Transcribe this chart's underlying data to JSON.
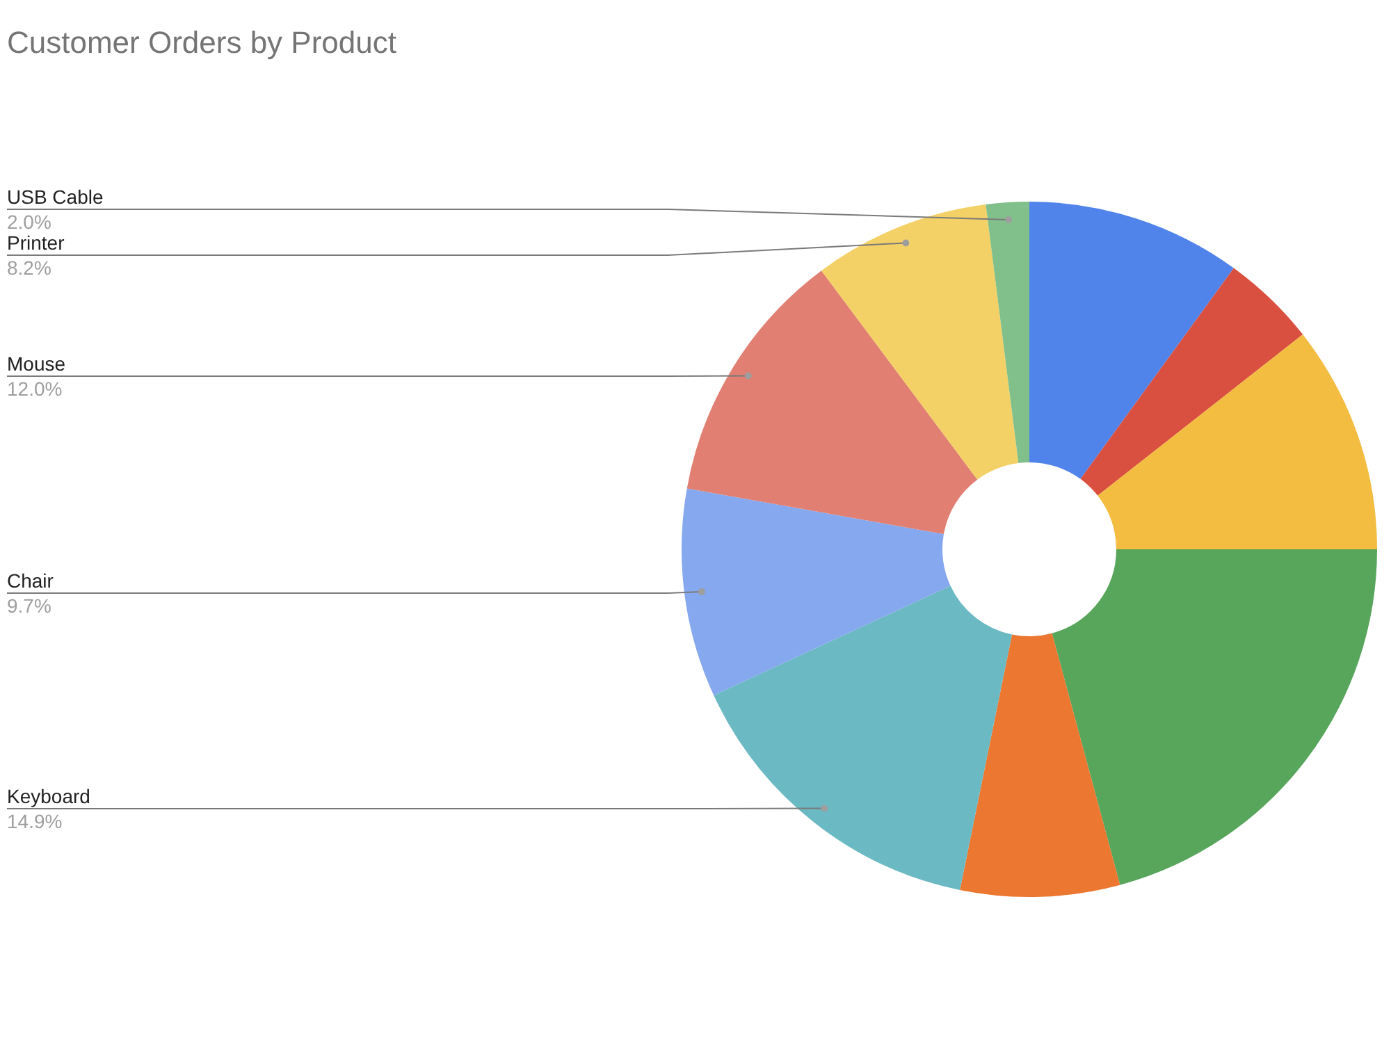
{
  "chart_data": {
    "type": "donut",
    "title": "Customer Orders by Product",
    "categories": [
      null,
      null,
      null,
      null,
      null,
      "Keyboard",
      "Chair",
      "Mouse",
      "Printer",
      "USB Cable"
    ],
    "values": [
      10.0,
      4.4,
      10.6,
      20.8,
      7.4,
      14.9,
      9.7,
      12.0,
      8.2,
      2.0
    ],
    "colors": [
      "#5184ea",
      "#da5040",
      "#f2bd40",
      "#57a65b",
      "#eb7731",
      "#6ab9c3",
      "#86a8ee",
      "#e07f72",
      "#f4d166",
      "#81c08b"
    ],
    "value_labels": [
      null,
      null,
      null,
      null,
      null,
      "14.9%",
      "9.7%",
      "12.0%",
      "8.2%",
      "2.0%"
    ]
  }
}
